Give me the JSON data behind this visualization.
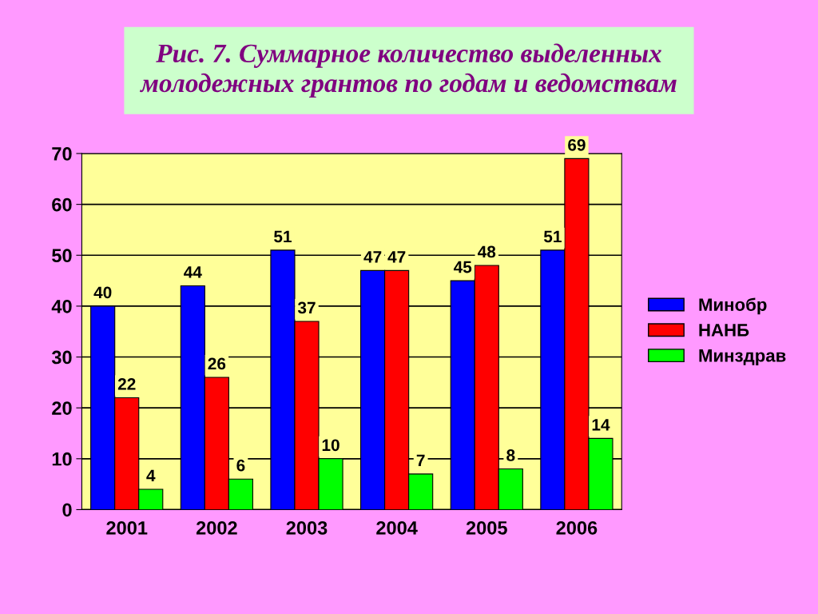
{
  "chart_data": {
    "type": "bar",
    "title": "Рис. 7. Суммарное количество выделенных\nмолодежных грантов по годам и ведомствам",
    "categories": [
      "2001",
      "2002",
      "2003",
      "2004",
      "2005",
      "2006"
    ],
    "series": [
      {
        "name": "Минобр",
        "color": "#0000ff",
        "values": [
          40,
          44,
          51,
          47,
          45,
          51
        ]
      },
      {
        "name": "НАНБ",
        "color": "#ff0000",
        "values": [
          22,
          26,
          37,
          47,
          48,
          69
        ]
      },
      {
        "name": "Минздрав",
        "color": "#00ff00",
        "values": [
          4,
          6,
          10,
          7,
          8,
          14
        ]
      }
    ],
    "ylim": [
      0,
      70
    ],
    "yticks": [
      0,
      10,
      20,
      30,
      40,
      50,
      60,
      70
    ],
    "grid": "y",
    "legend": "right",
    "data_labels": true
  }
}
